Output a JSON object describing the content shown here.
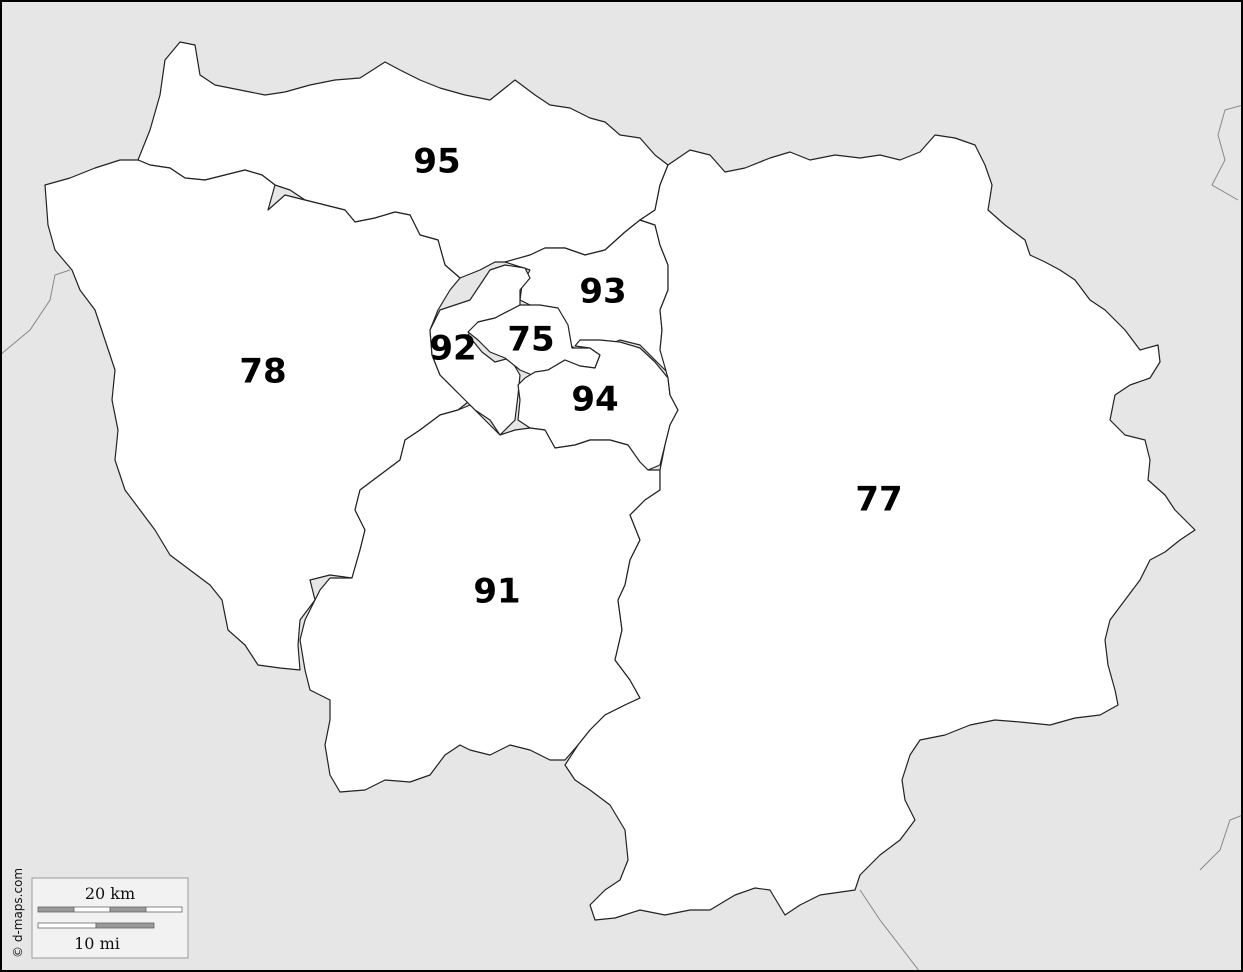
{
  "departments": [
    {
      "code": "95"
    },
    {
      "code": "78"
    },
    {
      "code": "93"
    },
    {
      "code": "92"
    },
    {
      "code": "75"
    },
    {
      "code": "94"
    },
    {
      "code": "91"
    },
    {
      "code": "77"
    }
  ],
  "scale": {
    "km_label": "20 km",
    "mi_label": "10 mi"
  },
  "credit": "© d-maps.com",
  "colors": {
    "outside": "#e6e6e6",
    "region": "#ffffff",
    "border": "#222222"
  }
}
